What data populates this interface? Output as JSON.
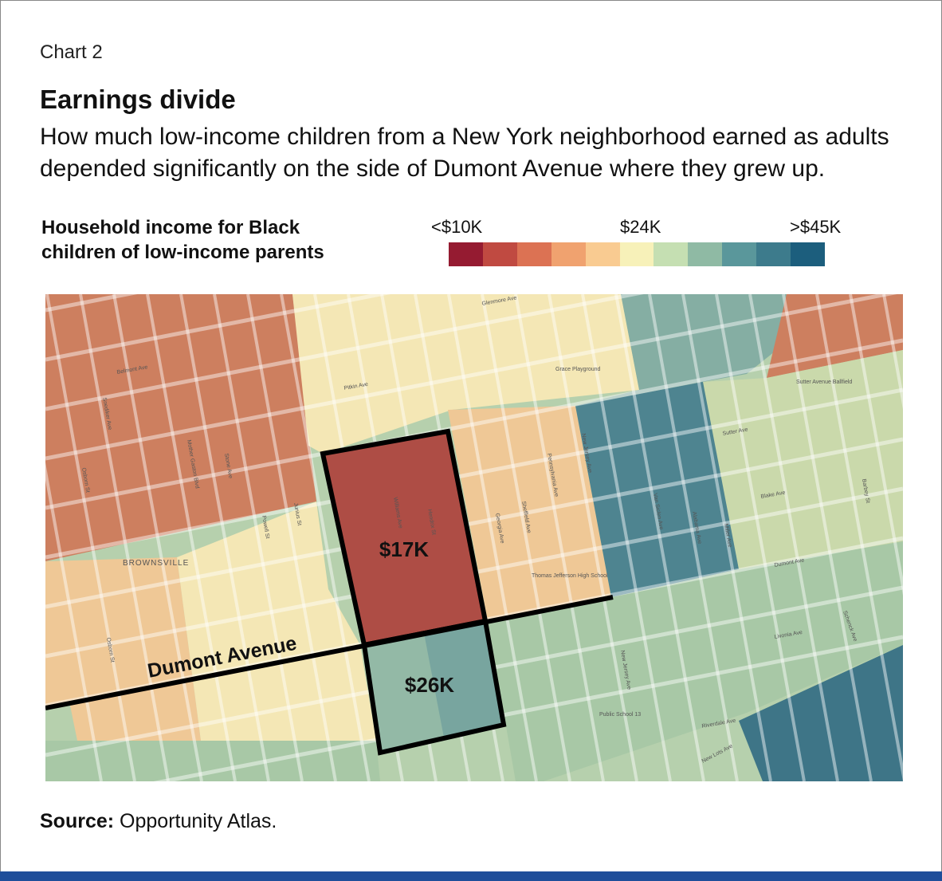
{
  "header": {
    "chart_label": "Chart 2",
    "title": "Earnings divide",
    "subtitle_lines": [
      "How much low-income children from a New York neighborhood earned as adults",
      "depended significantly on the side of Dumont Avenue where they grew up."
    ]
  },
  "legend": {
    "title_lines": [
      "Household income for Black",
      "children of low-income parents"
    ],
    "label_low": "<$10K",
    "label_mid": "$24K",
    "label_high": ">$45K",
    "colors": [
      "#951b31",
      "#c04a41",
      "#dc7253",
      "#f0a26f",
      "#f9cb91",
      "#f7f1b9",
      "#c5dfb2",
      "#8fbaa4",
      "#5a979b",
      "#3d7b8c",
      "#1c5e7d"
    ]
  },
  "map": {
    "highlight_north_value": "$17K",
    "highlight_south_value": "$26K",
    "avenue_label": "Dumont Avenue",
    "neighborhood_label": "BROWNSVILLE",
    "street_labels": [
      "Glenmore Ave",
      "Pitkin Ave",
      "Grace Playground",
      "Belmont Ave",
      "Sutter Avenue Ballfield",
      "Sutter Ave",
      "Blake Ave",
      "Dumont Ave",
      "Livonia Ave",
      "Riverdale Ave",
      "New Lots Ave",
      "Public School 13",
      "Thomas Jefferson High School",
      "Pennsylvania Ave",
      "New Jersey Ave",
      "Sheffield Ave",
      "Georgia Ave",
      "Osborn St",
      "Powell St",
      "Junius St",
      "Barbey St",
      "Miller Ave",
      "Schenck Ave",
      "Williams Ave",
      "Hendrix St",
      "Van Siclen Ave",
      "Alabama Ave",
      "Snediker Ave",
      "Mother Gaston Blvd",
      "Stone Ave"
    ],
    "colors": {
      "brown": "#cd7f5f",
      "peach": "#efc896",
      "yellow": "#f4e7b5",
      "light_green": "#cad9ab",
      "green": "#a8c8a6",
      "teal": "#85aea3",
      "dark_teal": "#4e8490",
      "deep_teal": "#3e7587",
      "red": "#ae4d45",
      "south_box": "#93b9a6",
      "south_box_east": "#6c9d9c"
    }
  },
  "footer": {
    "source_label": "Source:",
    "source_text": " Opportunity Atlas."
  }
}
